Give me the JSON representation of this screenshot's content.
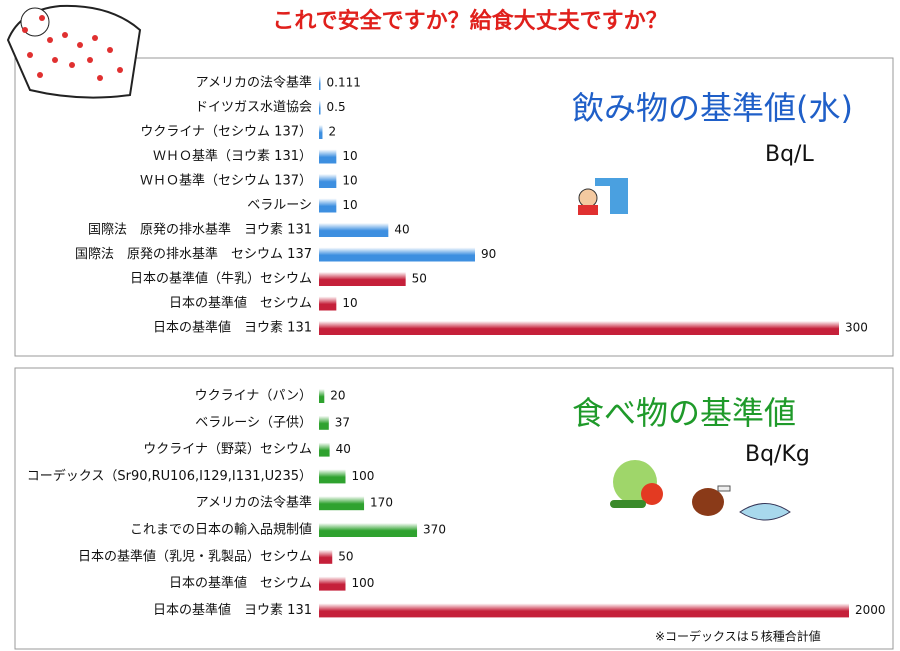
{
  "title": "これで安全ですか？給食大丈夫ですか？",
  "footnote": "※コーデックスは５核種合計値",
  "chart_data": [
    {
      "type": "bar",
      "orientation": "horizontal",
      "title": "飲み物の基準値(水)",
      "unit": "Bq/L",
      "categories": [
        "アメリカの法令基準",
        "ドイツガス水道協会",
        "ウクライナ（セシウム 137）",
        "ＷＨＯ基準（ヨウ素 131）",
        "ＷＨＯ基準（セシウム 137）",
        "ベラルーシ",
        "国際法　原発の排水基準　ヨウ素 131",
        "国際法　原発の排水基準　セシウム 137",
        "日本の基準値（牛乳）セシウム",
        "日本の基準値　セシウム",
        "日本の基準値　ヨウ素 131"
      ],
      "values": [
        0.111,
        0.5,
        2,
        10,
        10,
        10,
        40,
        90,
        50,
        10,
        300
      ],
      "colors": [
        "#3d8fe0",
        "#3d8fe0",
        "#3d8fe0",
        "#3d8fe0",
        "#3d8fe0",
        "#3d8fe0",
        "#3d8fe0",
        "#3d8fe0",
        "#c5203a",
        "#c5203a",
        "#c5203a"
      ]
    },
    {
      "type": "bar",
      "orientation": "horizontal",
      "title": "食べ物の基準値",
      "unit": "Bq/Kg",
      "categories": [
        "ウクライナ（パン）",
        "ベラルーシ（子供）",
        "ウクライナ（野菜）セシウム",
        "コーデックス（Sr90,RU106,I129,I131,U235）",
        "アメリカの法令基準",
        "これまでの日本の輸入品規制値",
        "日本の基準値（乳児・乳製品）セシウム",
        "日本の基準値　セシウム",
        "日本の基準値　ヨウ素 131"
      ],
      "values": [
        20,
        37,
        40,
        100,
        170,
        370,
        50,
        100,
        2000
      ],
      "colors": [
        "#2fa22f",
        "#2fa22f",
        "#2fa22f",
        "#2fa22f",
        "#2fa22f",
        "#2fa22f",
        "#c5203a",
        "#c5203a",
        "#c5203a"
      ]
    }
  ]
}
